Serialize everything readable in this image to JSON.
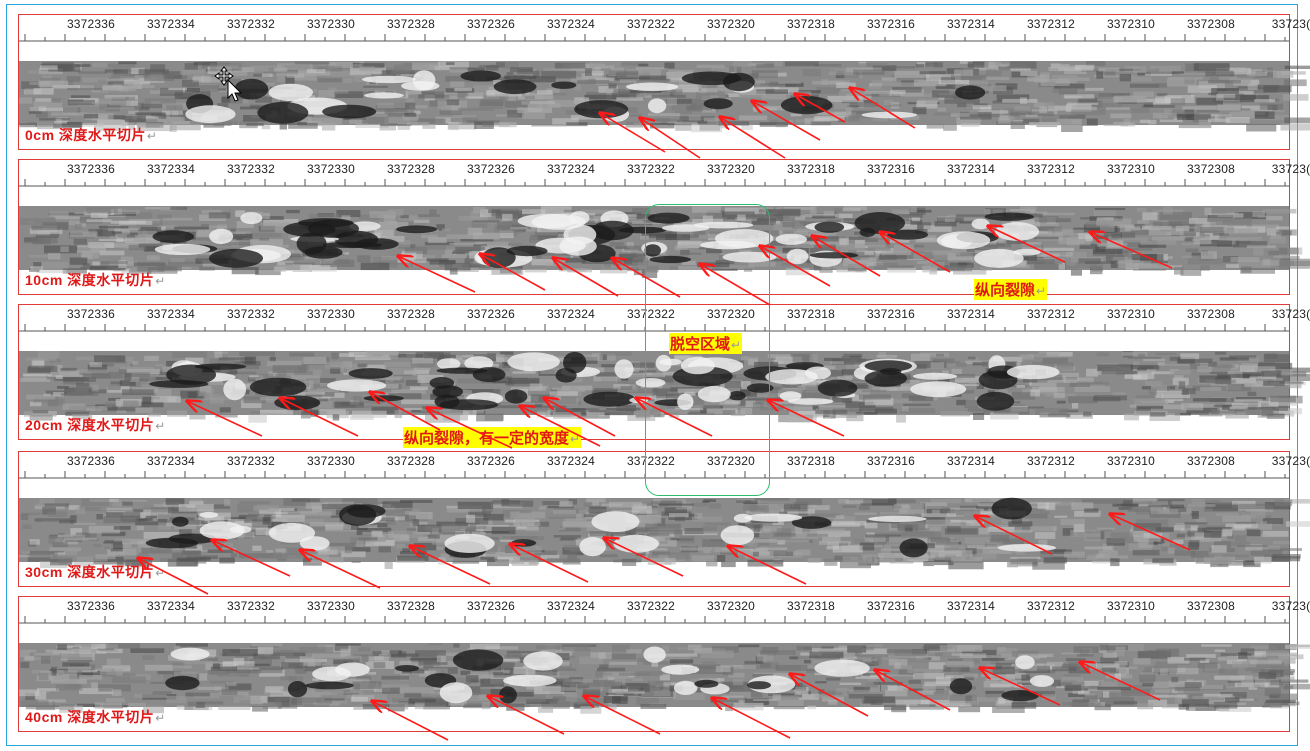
{
  "ruler_ticks": [
    "3372336",
    "3372334",
    "3372332",
    "3372330",
    "3372328",
    "3372326",
    "3372324",
    "3372322",
    "3372320",
    "3372318",
    "3372316",
    "3372314",
    "3372312",
    "3372310",
    "3372308",
    "33723("
  ],
  "panels": [
    {
      "caption": "0cm 深度水平切片"
    },
    {
      "caption": "10cm 深度水平切片"
    },
    {
      "caption": "20cm 深度水平切片"
    },
    {
      "caption": "30cm 深度水平切片"
    },
    {
      "caption": "40cm 深度水平切片"
    }
  ],
  "annotations": {
    "longitudinal_crack": "纵向裂隙",
    "void_area": "脱空区域",
    "crack_with_width": "纵向裂隙，有一定的宽度"
  },
  "colors": {
    "panel_border": "#e03a3a",
    "arrow": "#ff1a1a",
    "caption_text": "#e01818",
    "highlight": "#ffff00",
    "void_box": "#2dbd6e"
  },
  "return_mark": "↵"
}
